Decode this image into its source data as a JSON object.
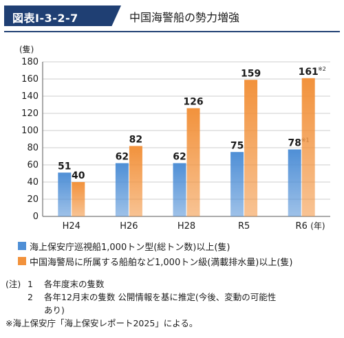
{
  "header": {
    "figure_id": "図表Ⅰ-3-2-7",
    "title": "中国海警船の勢力増強"
  },
  "chart_data": {
    "type": "bar",
    "y_unit_label": "(隻)",
    "x_unit_label": "(年)",
    "categories": [
      "H24",
      "H26",
      "H28",
      "R5",
      "R6"
    ],
    "ylim": [
      0,
      180
    ],
    "yticks": [
      0,
      20,
      40,
      60,
      80,
      100,
      120,
      140,
      160,
      180
    ],
    "grid": true,
    "series": [
      {
        "name": "海上保安庁巡視船1,000トン型(総トン数)以上(隻)",
        "values": [
          51,
          62,
          62,
          75,
          78
        ],
        "labels": [
          "51",
          "62",
          "62",
          "75",
          "78"
        ],
        "label_notes": [
          "",
          "",
          "",
          "",
          "※1"
        ],
        "color": "#4f8fd6"
      },
      {
        "name": "中国海警局に所属する船舶など1,000トン級(満載排水量)以上(隻)",
        "values": [
          40,
          82,
          126,
          159,
          161
        ],
        "labels": [
          "40",
          "82",
          "126",
          "159",
          "161"
        ],
        "label_notes": [
          "",
          "",
          "",
          "",
          "※2"
        ],
        "color": "#f2923c"
      }
    ],
    "legend_position": "bottom-left"
  },
  "notes": {
    "prefix": "(注)",
    "items": [
      {
        "num": "1",
        "text": "各年度末の隻数"
      },
      {
        "num": "2",
        "text": "各年12月末の隻数 公開情報を基に推定(今後、変動の可能性"
      },
      {
        "num": "",
        "text": "あり)"
      }
    ],
    "source": "※海上保安庁「海上保安レポート2025」による。"
  }
}
